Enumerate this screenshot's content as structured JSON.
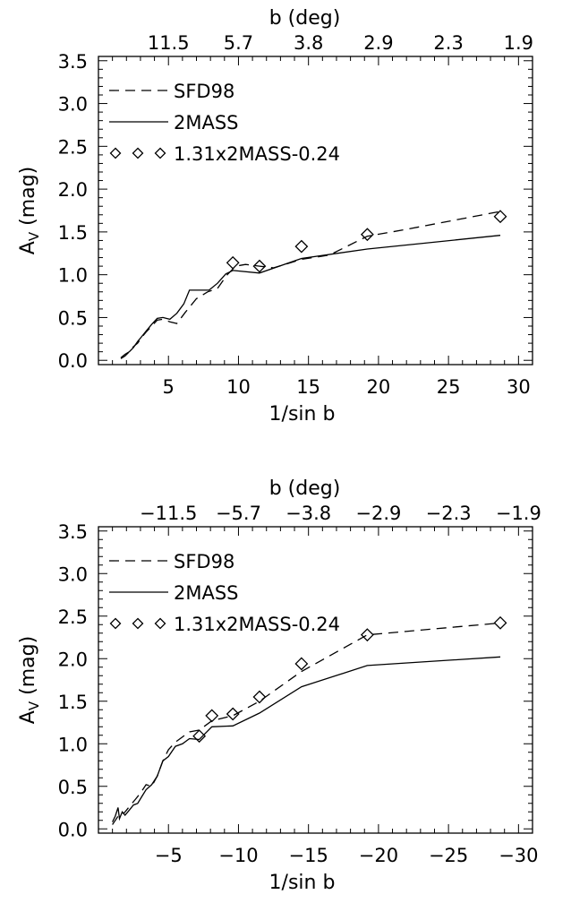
{
  "chart_data": [
    {
      "type": "line",
      "x_axis_label": "1/sin b",
      "y_axis_label": "A",
      "y_axis_label_subscript": "V",
      "y_axis_label_suffix": " (mag)",
      "top_axis_label": "b (deg)",
      "xlim": [
        0,
        31
      ],
      "ylim": [
        -0.05,
        3.55
      ],
      "x_ticks": [
        5,
        10,
        15,
        20,
        25,
        30
      ],
      "x_tick_labels": [
        "5",
        "10",
        "15",
        "20",
        "25",
        "30"
      ],
      "y_ticks": [
        0,
        0.5,
        1,
        1.5,
        2,
        2.5,
        3,
        3.5
      ],
      "y_tick_labels": [
        "0.0",
        "0.5",
        "1.0",
        "1.5",
        "2.0",
        "2.5",
        "3.0",
        "3.5"
      ],
      "top_ticks": [
        5,
        10,
        15,
        20,
        25,
        30
      ],
      "top_tick_labels": [
        "11.5",
        "5.7",
        "3.8",
        "2.9",
        "2.3",
        "1.9"
      ],
      "legend_placement": "top-left",
      "series": [
        {
          "name": "SFD98",
          "style": "dashed",
          "points": [
            [
              1.6,
              0.02
            ],
            [
              1.9,
              0.05
            ],
            [
              2.2,
              0.1
            ],
            [
              2.5,
              0.16
            ],
            [
              2.8,
              0.2
            ],
            [
              3.1,
              0.27
            ],
            [
              3.4,
              0.33
            ],
            [
              3.8,
              0.4
            ],
            [
              4.2,
              0.47
            ],
            [
              4.6,
              0.48
            ],
            [
              5.1,
              0.45
            ],
            [
              5.6,
              0.43
            ],
            [
              6.2,
              0.56
            ],
            [
              7.0,
              0.72
            ],
            [
              7.8,
              0.8
            ],
            [
              8.5,
              0.84
            ],
            [
              9.2,
              1.0
            ],
            [
              9.8,
              1.1
            ],
            [
              10.5,
              1.12
            ],
            [
              11.5,
              1.1
            ],
            [
              12.5,
              1.08
            ],
            [
              14.5,
              1.18
            ],
            [
              16.5,
              1.23
            ],
            [
              19.2,
              1.45
            ],
            [
              22,
              1.53
            ],
            [
              28.7,
              1.74
            ]
          ]
        },
        {
          "name": "2MASS",
          "style": "solid",
          "points": [
            [
              1.6,
              0.03
            ],
            [
              1.9,
              0.07
            ],
            [
              2.2,
              0.1
            ],
            [
              2.5,
              0.15
            ],
            [
              2.8,
              0.22
            ],
            [
              3.1,
              0.28
            ],
            [
              3.4,
              0.34
            ],
            [
              3.8,
              0.42
            ],
            [
              4.2,
              0.49
            ],
            [
              4.6,
              0.5
            ],
            [
              5.1,
              0.48
            ],
            [
              5.6,
              0.55
            ],
            [
              6.1,
              0.66
            ],
            [
              6.5,
              0.82
            ],
            [
              7.2,
              0.82
            ],
            [
              7.9,
              0.82
            ],
            [
              8.5,
              0.9
            ],
            [
              9.1,
              1.01
            ],
            [
              9.6,
              1.05
            ],
            [
              11.5,
              1.02
            ],
            [
              14.5,
              1.19
            ],
            [
              19.2,
              1.3
            ],
            [
              28.7,
              1.46
            ]
          ]
        },
        {
          "name": "1.31x2MASS-0.24",
          "style": "diamond",
          "points": [
            [
              9.6,
              1.14
            ],
            [
              11.5,
              1.1
            ],
            [
              14.5,
              1.33
            ],
            [
              19.2,
              1.47
            ],
            [
              28.7,
              1.68
            ]
          ]
        }
      ]
    },
    {
      "type": "line",
      "x_axis_label": "1/sin b",
      "y_axis_label": "A",
      "y_axis_label_subscript": "V",
      "y_axis_label_suffix": " (mag)",
      "top_axis_label": "b (deg)",
      "xlim": [
        0,
        -31
      ],
      "ylim": [
        -0.05,
        3.55
      ],
      "x_ticks": [
        -5,
        -10,
        -15,
        -20,
        -25,
        -30
      ],
      "x_tick_labels": [
        "−5",
        "−10",
        "−15",
        "−20",
        "−25",
        "−30"
      ],
      "y_ticks": [
        0,
        0.5,
        1,
        1.5,
        2,
        2.5,
        3,
        3.5
      ],
      "y_tick_labels": [
        "0.0",
        "0.5",
        "1.0",
        "1.5",
        "2.0",
        "2.5",
        "3.0",
        "3.5"
      ],
      "top_ticks": [
        -5,
        -10,
        -15,
        -20,
        -25,
        -30
      ],
      "top_tick_labels": [
        "−11.5",
        "−5.7",
        "−3.8",
        "−2.9",
        "−2.3",
        "−1.9"
      ],
      "legend_placement": "top-left",
      "series": [
        {
          "name": "SFD98",
          "style": "dashed",
          "points": [
            [
              -1.0,
              0.05
            ],
            [
              -1.2,
              0.1
            ],
            [
              -1.4,
              0.15
            ],
            [
              -1.6,
              0.2
            ],
            [
              -1.8,
              0.18
            ],
            [
              -2.0,
              0.22
            ],
            [
              -2.3,
              0.28
            ],
            [
              -2.6,
              0.34
            ],
            [
              -3.0,
              0.42
            ],
            [
              -3.4,
              0.52
            ],
            [
              -3.8,
              0.5
            ],
            [
              -4.2,
              0.62
            ],
            [
              -4.6,
              0.8
            ],
            [
              -5.0,
              0.93
            ],
            [
              -5.5,
              1.02
            ],
            [
              -6.0,
              1.08
            ],
            [
              -6.5,
              1.14
            ],
            [
              -7.2,
              1.16
            ],
            [
              -8.1,
              1.27
            ],
            [
              -9.6,
              1.33
            ],
            [
              -11.5,
              1.5
            ],
            [
              -14.5,
              1.85
            ],
            [
              -19.2,
              2.28
            ],
            [
              -28.7,
              2.42
            ]
          ]
        },
        {
          "name": "2MASS",
          "style": "solid",
          "points": [
            [
              -1.0,
              0.08
            ],
            [
              -1.2,
              0.15
            ],
            [
              -1.4,
              0.25
            ],
            [
              -1.5,
              0.12
            ],
            [
              -1.7,
              0.2
            ],
            [
              -1.9,
              0.16
            ],
            [
              -2.2,
              0.22
            ],
            [
              -2.5,
              0.28
            ],
            [
              -2.8,
              0.3
            ],
            [
              -3.1,
              0.38
            ],
            [
              -3.4,
              0.46
            ],
            [
              -3.8,
              0.52
            ],
            [
              -4.2,
              0.62
            ],
            [
              -4.6,
              0.8
            ],
            [
              -5.0,
              0.85
            ],
            [
              -5.5,
              0.97
            ],
            [
              -6.0,
              1.0
            ],
            [
              -6.5,
              1.06
            ],
            [
              -7.2,
              1.05
            ],
            [
              -8.1,
              1.2
            ],
            [
              -9.6,
              1.21
            ],
            [
              -11.5,
              1.36
            ],
            [
              -14.5,
              1.67
            ],
            [
              -19.2,
              1.92
            ],
            [
              -28.7,
              2.02
            ]
          ]
        },
        {
          "name": "1.31x2MASS-0.24",
          "style": "diamond",
          "points": [
            [
              -7.2,
              1.09
            ],
            [
              -8.1,
              1.33
            ],
            [
              -9.6,
              1.35
            ],
            [
              -11.5,
              1.55
            ],
            [
              -14.5,
              1.94
            ],
            [
              -19.2,
              2.28
            ],
            [
              -28.7,
              2.42
            ]
          ]
        }
      ]
    }
  ]
}
